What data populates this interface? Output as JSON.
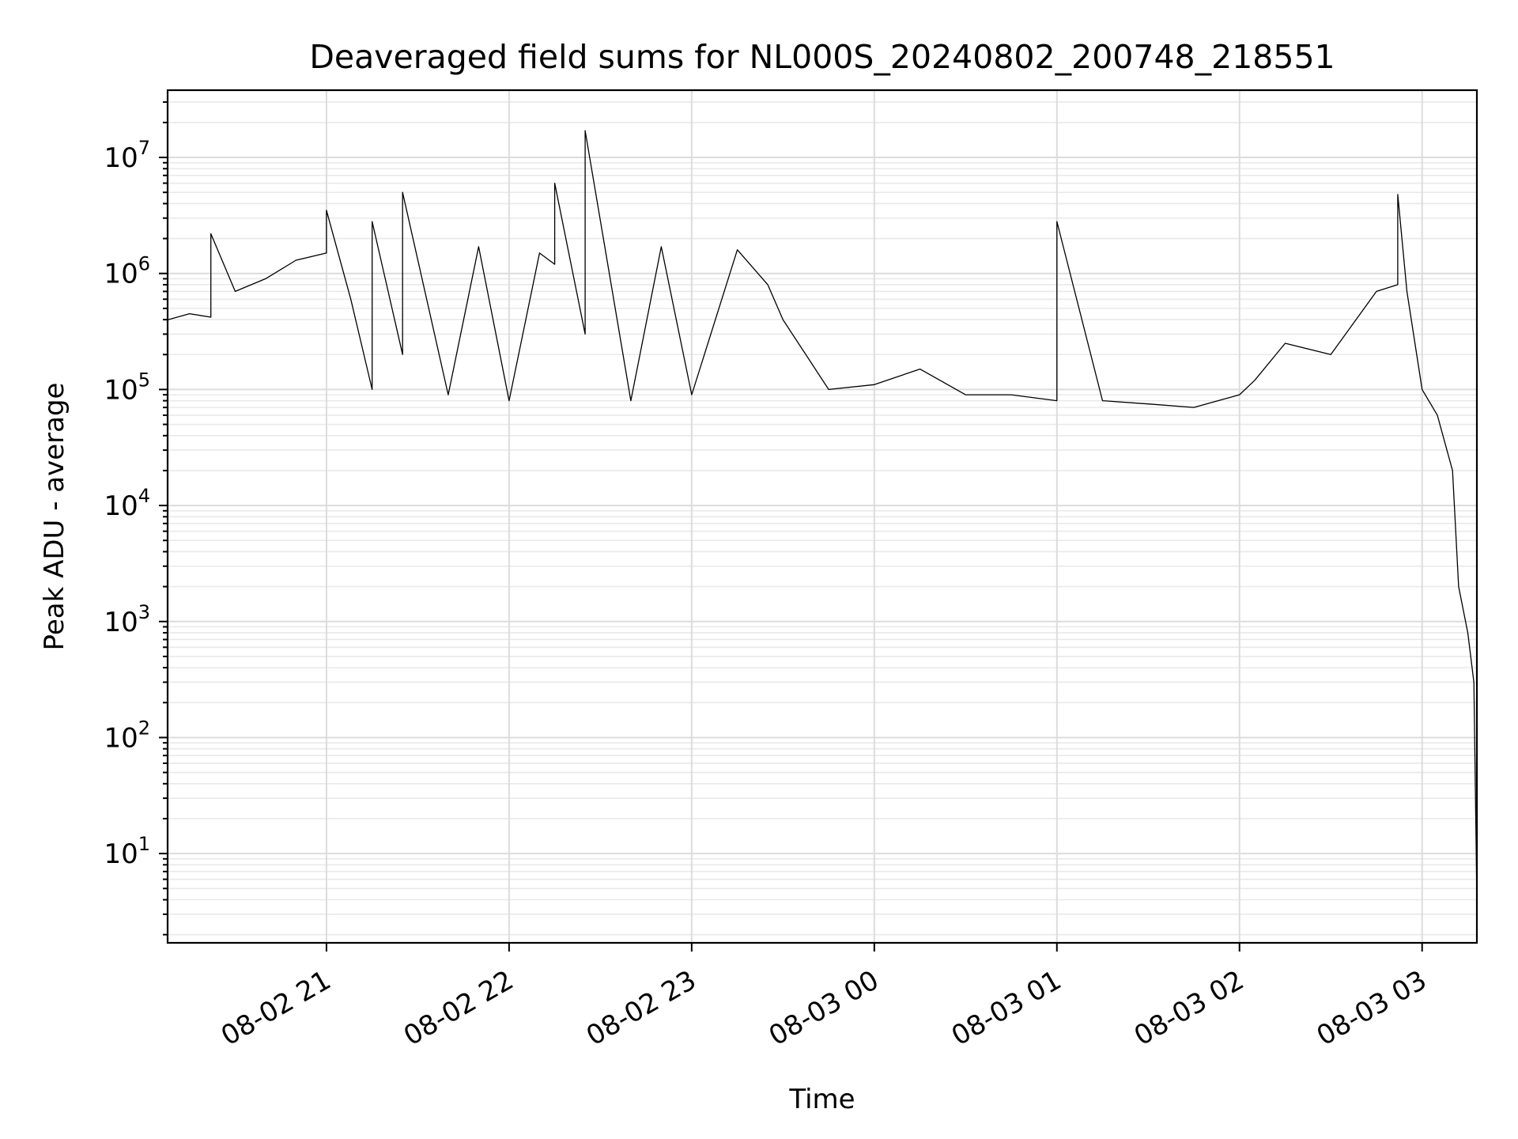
{
  "chart_data": {
    "type": "line",
    "title": "Deaveraged field sums for NL000S_20240802_200748_218551",
    "xlabel": "Time",
    "ylabel": "Peak ADU - average",
    "yscale": "log",
    "ylim": [
      1.7,
      38000000
    ],
    "xlim": [
      "2024-08-02 20:07:48",
      "2024-08-03 03:18:00"
    ],
    "x_ticks": [
      {
        "t": "2024-08-02 21:00",
        "label": "08-02 21"
      },
      {
        "t": "2024-08-02 22:00",
        "label": "08-02 22"
      },
      {
        "t": "2024-08-02 23:00",
        "label": "08-02 23"
      },
      {
        "t": "2024-08-03 00:00",
        "label": "08-03 00"
      },
      {
        "t": "2024-08-03 01:00",
        "label": "08-03 01"
      },
      {
        "t": "2024-08-03 02:00",
        "label": "08-03 02"
      },
      {
        "t": "2024-08-03 03:00",
        "label": "08-03 03"
      }
    ],
    "y_ticks": [
      {
        "value": 10,
        "base": "10",
        "exp": "1"
      },
      {
        "value": 100,
        "base": "10",
        "exp": "2"
      },
      {
        "value": 1000,
        "base": "10",
        "exp": "3"
      },
      {
        "value": 10000,
        "base": "10",
        "exp": "4"
      },
      {
        "value": 100000,
        "base": "10",
        "exp": "5"
      },
      {
        "value": 1000000,
        "base": "10",
        "exp": "6"
      },
      {
        "value": 10000000,
        "base": "10",
        "exp": "7"
      }
    ],
    "grid": true,
    "color": "#000000",
    "series": [
      {
        "x": [
          "2024-08-02 20:08",
          "2024-08-02 20:15",
          "2024-08-02 20:22",
          "2024-08-02 20:22",
          "2024-08-02 20:30",
          "2024-08-02 20:40",
          "2024-08-02 20:50",
          "2024-08-02 21:00",
          "2024-08-02 21:00",
          "2024-08-02 21:08",
          "2024-08-02 21:15",
          "2024-08-02 21:15",
          "2024-08-02 21:25",
          "2024-08-02 21:25",
          "2024-08-02 21:40",
          "2024-08-02 21:50",
          "2024-08-02 22:00",
          "2024-08-02 22:10",
          "2024-08-02 22:15",
          "2024-08-02 22:15",
          "2024-08-02 22:25",
          "2024-08-02 22:25",
          "2024-08-02 22:40",
          "2024-08-02 22:50",
          "2024-08-02 23:00",
          "2024-08-02 23:15",
          "2024-08-02 23:25",
          "2024-08-02 23:30",
          "2024-08-02 23:45",
          "2024-08-03 00:00",
          "2024-08-03 00:15",
          "2024-08-03 00:30",
          "2024-08-03 00:45",
          "2024-08-03 01:00",
          "2024-08-03 01:00",
          "2024-08-03 01:15",
          "2024-08-03 01:30",
          "2024-08-03 01:45",
          "2024-08-03 02:00",
          "2024-08-03 02:05",
          "2024-08-03 02:15",
          "2024-08-03 02:30",
          "2024-08-03 02:45",
          "2024-08-03 02:52",
          "2024-08-03 02:52",
          "2024-08-03 02:55",
          "2024-08-03 03:00",
          "2024-08-03 03:05",
          "2024-08-03 03:10",
          "2024-08-03 03:12",
          "2024-08-03 03:15",
          "2024-08-03 03:17",
          "2024-08-03 03:18"
        ],
        "y": [
          400000,
          450000,
          420000,
          2200000,
          700000,
          900000,
          1300000,
          1500000,
          3500000,
          600000,
          100000,
          2800000,
          200000,
          5000000,
          90000,
          1700000,
          80000,
          1500000,
          1200000,
          6000000,
          300000,
          17000000,
          80000,
          1700000,
          90000,
          1600000,
          800000,
          400000,
          100000,
          110000,
          150000,
          90000,
          90000,
          80000,
          2800000,
          80000,
          75000,
          70000,
          90000,
          120000,
          250000,
          200000,
          700000,
          800000,
          4800000,
          700000,
          100000,
          60000,
          20000,
          2000,
          800,
          300,
          4
        ]
      }
    ]
  }
}
